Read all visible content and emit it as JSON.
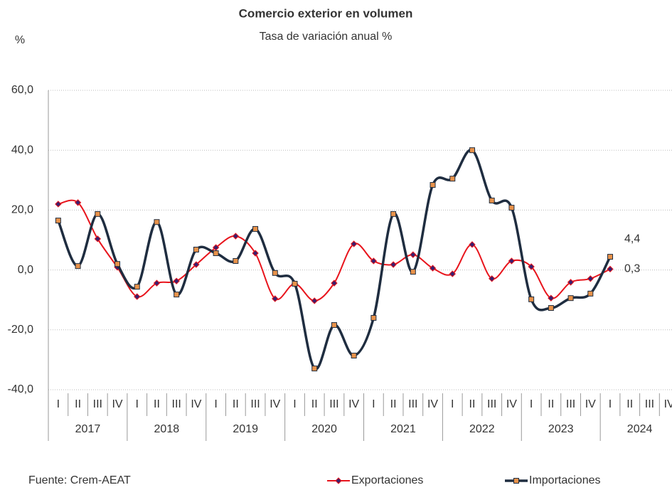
{
  "chart_data": {
    "type": "line",
    "title": "Comercio exterior en volumen",
    "subtitle": "Tasa de variación anual %",
    "y_unit": "%",
    "source": "Fuente: Crem-AEAT",
    "categories": [
      "I",
      "II",
      "III",
      "IV",
      "I",
      "II",
      "III",
      "IV",
      "I",
      "II",
      "III",
      "IV",
      "I",
      "II",
      "III",
      "IV",
      "I",
      "II",
      "III",
      "IV",
      "I",
      "II",
      "III",
      "IV",
      "I",
      "II",
      "III",
      "IV",
      "I",
      "II",
      "III",
      "IV"
    ],
    "years": [
      "2017",
      "2018",
      "2019",
      "2020",
      "2021",
      "2022",
      "2023",
      "2024"
    ],
    "series": [
      {
        "name": "Exportaciones",
        "color": "#e8141c",
        "marker_color": "#3a1f6e",
        "values": [
          22.0,
          22.5,
          10.4,
          0.9,
          -8.9,
          -4.4,
          -3.7,
          1.8,
          7.5,
          11.3,
          5.6,
          -9.6,
          -4.6,
          -10.3,
          -4.4,
          8.7,
          3.0,
          1.8,
          5.1,
          0.6,
          -1.3,
          8.5,
          -2.9,
          3.0,
          1.1,
          -9.4,
          -4.1,
          -2.9,
          0.3,
          null,
          null,
          null
        ],
        "value_labels": [
          null,
          null,
          null,
          null,
          null,
          null,
          null,
          null,
          null,
          null,
          null,
          null,
          null,
          null,
          null,
          null,
          null,
          null,
          null,
          null,
          null,
          null,
          null,
          null,
          null,
          null,
          null,
          null,
          "0,3",
          null,
          null,
          null
        ]
      },
      {
        "name": "Importaciones",
        "color": "#1f2d40",
        "marker_color": "#e8924a",
        "values": [
          16.5,
          1.3,
          18.7,
          2.0,
          -5.6,
          16.0,
          -8.2,
          6.8,
          5.6,
          3.0,
          13.7,
          -1.0,
          -4.6,
          -32.9,
          -18.4,
          -28.6,
          -16.0,
          18.7,
          -0.6,
          28.4,
          30.5,
          40.0,
          23.2,
          20.8,
          -9.8,
          -12.7,
          -9.4,
          -7.9,
          4.4,
          null,
          null,
          null
        ],
        "value_labels": [
          null,
          null,
          null,
          null,
          null,
          null,
          null,
          null,
          null,
          null,
          null,
          null,
          null,
          null,
          null,
          null,
          null,
          null,
          null,
          null,
          null,
          null,
          null,
          null,
          null,
          null,
          null,
          null,
          "4,4",
          null,
          null,
          null
        ]
      }
    ],
    "ylim": [
      -40,
      60
    ],
    "yticks": [
      {
        "value": -40,
        "label": "-40,0"
      },
      {
        "value": -20,
        "label": "-20,0"
      },
      {
        "value": 0,
        "label": "0,0"
      },
      {
        "value": 20,
        "label": "20,0"
      },
      {
        "value": 40,
        "label": "40,0"
      },
      {
        "value": 60,
        "label": "60,0"
      }
    ],
    "grid": true,
    "smooth": true,
    "legend": "bottom"
  }
}
